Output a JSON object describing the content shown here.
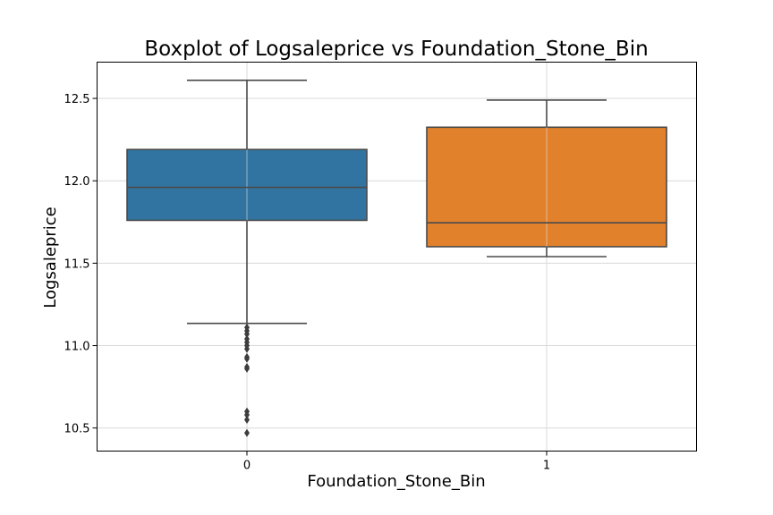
{
  "chart_data": {
    "type": "box",
    "title": "Boxplot of Logsaleprice vs Foundation_Stone_Bin",
    "xlabel": "Foundation_Stone_Bin",
    "ylabel": "Logsaleprice",
    "categories": [
      "0",
      "1"
    ],
    "ylim": [
      10.36,
      12.72
    ],
    "yticks": [
      10.5,
      11.0,
      11.5,
      12.0,
      12.5
    ],
    "ytick_labels": [
      "10.5",
      "11.0",
      "11.5",
      "12.0",
      "12.5"
    ],
    "grid": true,
    "boxes": [
      {
        "category": "0",
        "color": "#3274a1",
        "whisker_low": 11.135,
        "q1": 11.76,
        "median": 11.96,
        "q3": 12.19,
        "whisker_high": 12.61,
        "outliers": [
          11.11,
          11.09,
          11.07,
          11.04,
          11.02,
          11.0,
          10.98,
          10.93,
          10.92,
          10.87,
          10.86,
          10.6,
          10.58,
          10.55,
          10.47
        ]
      },
      {
        "category": "1",
        "color": "#e1812c",
        "whisker_low": 11.54,
        "q1": 11.6,
        "median": 11.745,
        "q3": 12.325,
        "whisker_high": 12.49,
        "outliers": []
      }
    ]
  }
}
